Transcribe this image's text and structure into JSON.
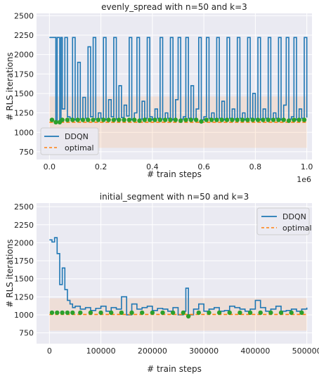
{
  "chart_data": [
    {
      "type": "line",
      "title": "evenly_spread with n=50 and k=3",
      "xlabel": "# train steps",
      "ylabel": "# RLS iterations",
      "x_offset_label": "1e6",
      "xlim": [
        -0.05,
        1.02
      ],
      "ylim": [
        650,
        2530
      ],
      "xticks": [
        0.0,
        0.2,
        0.4,
        0.6,
        0.8,
        1.0
      ],
      "xtick_labels": [
        "0.0",
        "0.2",
        "0.4",
        "0.6",
        "0.8",
        "1.0"
      ],
      "yticks": [
        750,
        1000,
        1250,
        1500,
        1750,
        2000,
        2250,
        2500
      ],
      "ytick_labels": [
        "750",
        "1000",
        "1250",
        "1500",
        "1750",
        "2000",
        "2250",
        "2500"
      ],
      "legend": {
        "placement": "lower-left",
        "entries": [
          "DDQN",
          "optimal"
        ]
      },
      "grid": true,
      "series": [
        {
          "name": "DDQN",
          "color": "#1f77b4",
          "x": [
            0.0,
            0.01,
            0.02,
            0.025,
            0.03,
            0.04,
            0.045,
            0.05,
            0.06,
            0.07,
            0.08,
            0.09,
            0.1,
            0.11,
            0.12,
            0.13,
            0.14,
            0.15,
            0.16,
            0.17,
            0.18,
            0.19,
            0.2,
            0.21,
            0.22,
            0.23,
            0.24,
            0.25,
            0.26,
            0.27,
            0.28,
            0.29,
            0.3,
            0.31,
            0.32,
            0.33,
            0.34,
            0.35,
            0.36,
            0.37,
            0.38,
            0.39,
            0.4,
            0.41,
            0.42,
            0.43,
            0.44,
            0.45,
            0.46,
            0.47,
            0.48,
            0.49,
            0.5,
            0.51,
            0.52,
            0.53,
            0.54,
            0.55,
            0.56,
            0.57,
            0.58,
            0.59,
            0.6,
            0.61,
            0.62,
            0.63,
            0.64,
            0.65,
            0.66,
            0.67,
            0.68,
            0.69,
            0.7,
            0.71,
            0.72,
            0.73,
            0.74,
            0.75,
            0.76,
            0.77,
            0.78,
            0.79,
            0.8,
            0.81,
            0.82,
            0.83,
            0.84,
            0.85,
            0.86,
            0.87,
            0.88,
            0.89,
            0.9,
            0.91,
            0.92,
            0.93,
            0.94,
            0.95,
            0.96,
            0.97,
            0.98,
            0.99,
            1.0
          ],
          "values": [
            2220,
            2220,
            2220,
            1150,
            2220,
            1150,
            2220,
            1300,
            2220,
            1200,
            1180,
            2220,
            1160,
            1900,
            1170,
            1450,
            1180,
            2100,
            1200,
            2220,
            1170,
            1250,
            1180,
            2220,
            1160,
            1420,
            1200,
            2220,
            1170,
            1600,
            1190,
            1350,
            1210,
            2220,
            1160,
            1250,
            2220,
            1170,
            1400,
            1180,
            2220,
            1200,
            1160,
            1300,
            1180,
            2220,
            1170,
            1250,
            1180,
            2220,
            1160,
            1420,
            2220,
            1170,
            1200,
            2220,
            1180,
            1600,
            1170,
            1300,
            2220,
            1160,
            1200,
            2220,
            1180,
            1250,
            1170,
            2220,
            1180,
            1400,
            1160,
            2220,
            1180,
            1300,
            1170,
            2220,
            1180,
            1250,
            1160,
            2220,
            1180,
            1500,
            1170,
            2220,
            1160,
            1300,
            1180,
            2220,
            1170,
            1250,
            1180,
            2220,
            1160,
            1350,
            2220,
            1170,
            1200,
            2220,
            1160,
            1300,
            1180,
            2220,
            1190
          ]
        },
        {
          "name": "optimal",
          "color": "#ff7f0e",
          "x": [
            0.0,
            1.0
          ],
          "values": [
            1130,
            1130
          ]
        }
      ],
      "band": {
        "x": [
          0.0,
          1.0
        ],
        "lower": [
          800,
          800
        ],
        "upper": [
          1460,
          1460
        ]
      },
      "markers_y": 1140
    },
    {
      "type": "line",
      "title": "initial_segment with n=50 and k=3",
      "xlabel": "# train steps",
      "ylabel": "# RLS iterations",
      "xlim": [
        -25000,
        510000
      ],
      "ylim": [
        600,
        2550
      ],
      "xticks": [
        0,
        100000,
        200000,
        300000,
        400000,
        500000
      ],
      "xtick_labels": [
        "0",
        "100000",
        "200000",
        "300000",
        "400000",
        "500000"
      ],
      "yticks": [
        750,
        1000,
        1250,
        1500,
        1750,
        2000,
        2250,
        2500
      ],
      "ytick_labels": [
        "750",
        "1000",
        "1250",
        "1500",
        "1750",
        "2000",
        "2250",
        "2500"
      ],
      "legend": {
        "placement": "upper-right",
        "entries": [
          "DDQN",
          "optimal"
        ]
      },
      "grid": true,
      "series": [
        {
          "name": "DDQN",
          "color": "#1f77b4",
          "x": [
            0,
            5000,
            10000,
            15000,
            20000,
            25000,
            30000,
            35000,
            40000,
            45000,
            50000,
            60000,
            70000,
            80000,
            90000,
            100000,
            110000,
            120000,
            130000,
            140000,
            150000,
            160000,
            170000,
            180000,
            190000,
            200000,
            210000,
            220000,
            230000,
            240000,
            250000,
            260000,
            265000,
            270000,
            280000,
            290000,
            300000,
            310000,
            320000,
            330000,
            340000,
            350000,
            360000,
            370000,
            380000,
            390000,
            400000,
            410000,
            420000,
            430000,
            440000,
            450000,
            460000,
            470000,
            480000,
            490000,
            500000
          ],
          "values": [
            2040,
            2010,
            2070,
            1850,
            1420,
            1650,
            1350,
            1200,
            1150,
            1100,
            1120,
            1080,
            1100,
            1060,
            1090,
            1120,
            1050,
            1100,
            1080,
            1250,
            1000,
            1150,
            1080,
            1100,
            1120,
            1060,
            1090,
            1080,
            1050,
            1100,
            1000,
            1050,
            1370,
            1000,
            1080,
            1150,
            1050,
            1080,
            1100,
            1050,
            1060,
            1120,
            1100,
            1080,
            1050,
            1080,
            1200,
            1100,
            1050,
            1080,
            1120,
            1050,
            1060,
            1080,
            1050,
            1080,
            1100
          ]
        },
        {
          "name": "optimal",
          "color": "#ff7f0e",
          "x": [
            0,
            500000
          ],
          "values": [
            1005,
            1005
          ]
        }
      ],
      "band": {
        "x": [
          0,
          500000
        ],
        "lower": [
          780,
          780
        ],
        "upper": [
          1230,
          1230
        ]
      },
      "markers_y": 1010
    }
  ]
}
